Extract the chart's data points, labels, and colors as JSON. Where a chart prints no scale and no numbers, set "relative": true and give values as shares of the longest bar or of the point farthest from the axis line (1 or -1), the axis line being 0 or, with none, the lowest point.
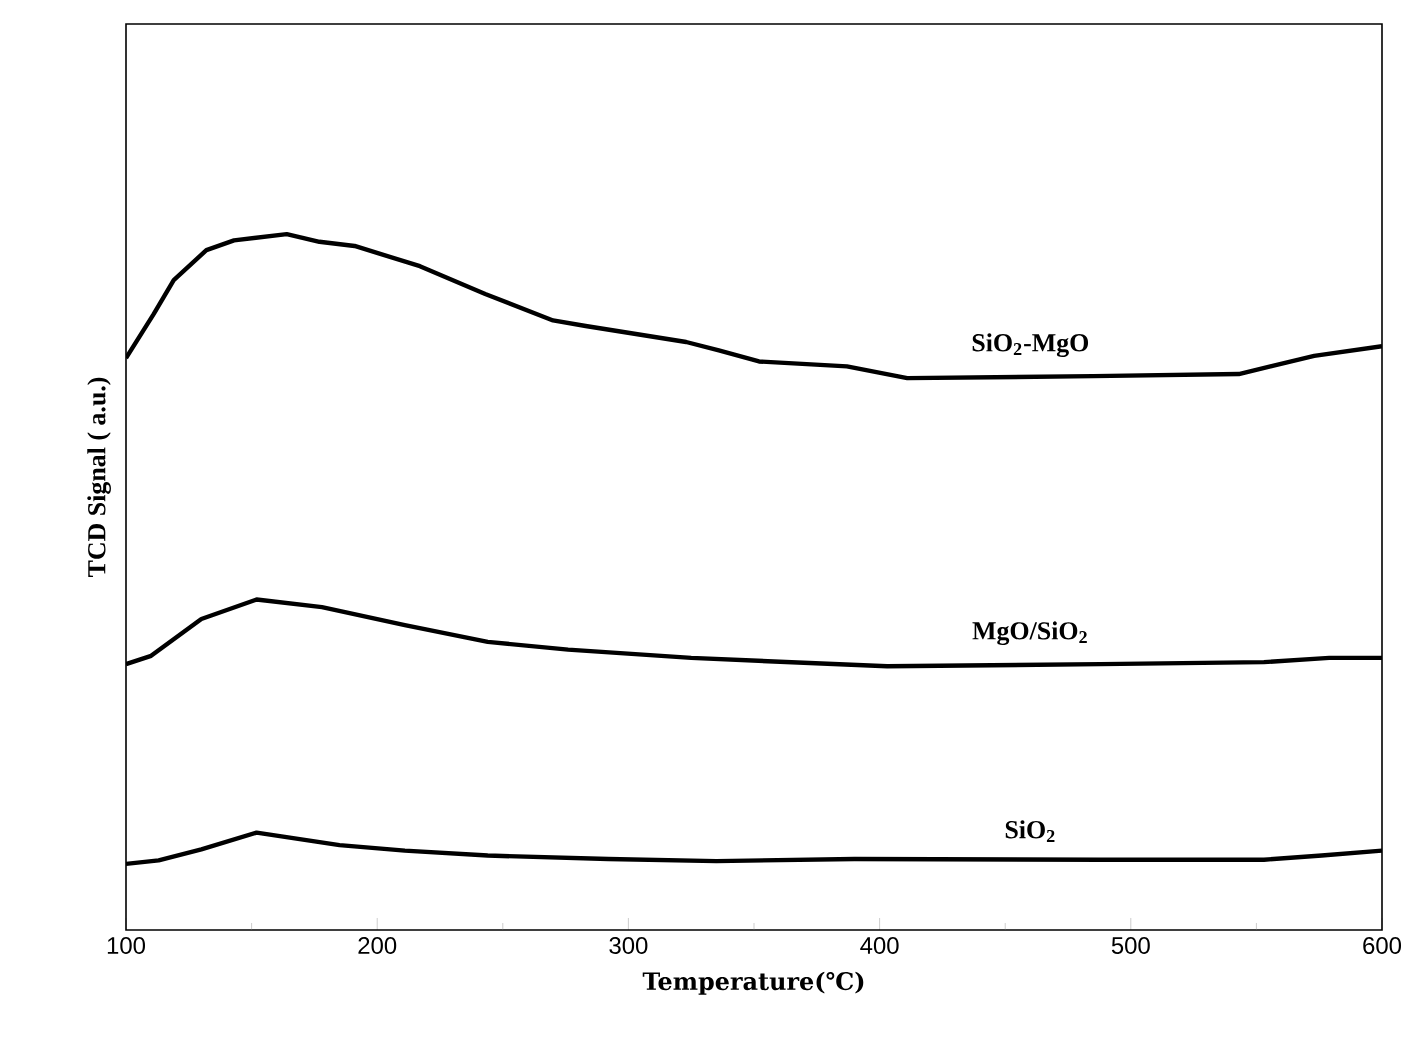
{
  "chart_data": {
    "type": "line",
    "relative": true,
    "xlabel": "Temperature(℃)",
    "ylabel": "TCD Signal ( a.u.)",
    "xlim": [
      100,
      600
    ],
    "xticks": [
      100,
      {
        "value": 150,
        "label": null
      },
      200,
      {
        "value": 250,
        "label": null
      },
      300,
      {
        "value": 350,
        "label": null
      },
      400,
      {
        "value": 450,
        "label": null
      },
      500,
      {
        "value": 550,
        "label": null
      },
      600
    ],
    "tick_labels": "x",
    "grid": false,
    "marker": "none",
    "line_style": "solid",
    "series": [
      {
        "name": "SiO$_{2}$-MgO",
        "color": "#000000",
        "x": [
          100,
          111,
          119,
          132,
          143,
          164,
          177,
          191,
          217,
          243,
          270,
          283,
          323,
          336,
          352,
          387,
          411,
          485,
          543,
          573,
          600
        ],
        "values": [
          0.822,
          0.885,
          0.934,
          0.977,
          0.991,
          1.0,
          0.989,
          0.983,
          0.954,
          0.914,
          0.876,
          0.868,
          0.845,
          0.833,
          0.817,
          0.81,
          0.793,
          0.796,
          0.799,
          0.825,
          0.839
        ]
      },
      {
        "name": "MgO/SiO$_{2}$",
        "color": "#000000",
        "x": [
          100,
          110,
          130,
          152,
          178,
          211,
          244,
          276,
          325,
          403,
          488,
          553,
          579,
          600
        ],
        "values": [
          0.382,
          0.394,
          0.447,
          0.475,
          0.464,
          0.438,
          0.414,
          0.403,
          0.391,
          0.379,
          0.382,
          0.385,
          0.391,
          0.391
        ]
      },
      {
        "name": "SiO$_{2}$",
        "color": "#000000",
        "x": [
          100,
          113,
          130,
          152,
          185,
          211,
          244,
          292,
          335,
          390,
          488,
          553,
          576,
          600
        ],
        "values": [
          0.095,
          0.1,
          0.116,
          0.14,
          0.122,
          0.114,
          0.107,
          0.102,
          0.099,
          0.102,
          0.101,
          0.101,
          0.107,
          0.114
        ]
      }
    ]
  }
}
